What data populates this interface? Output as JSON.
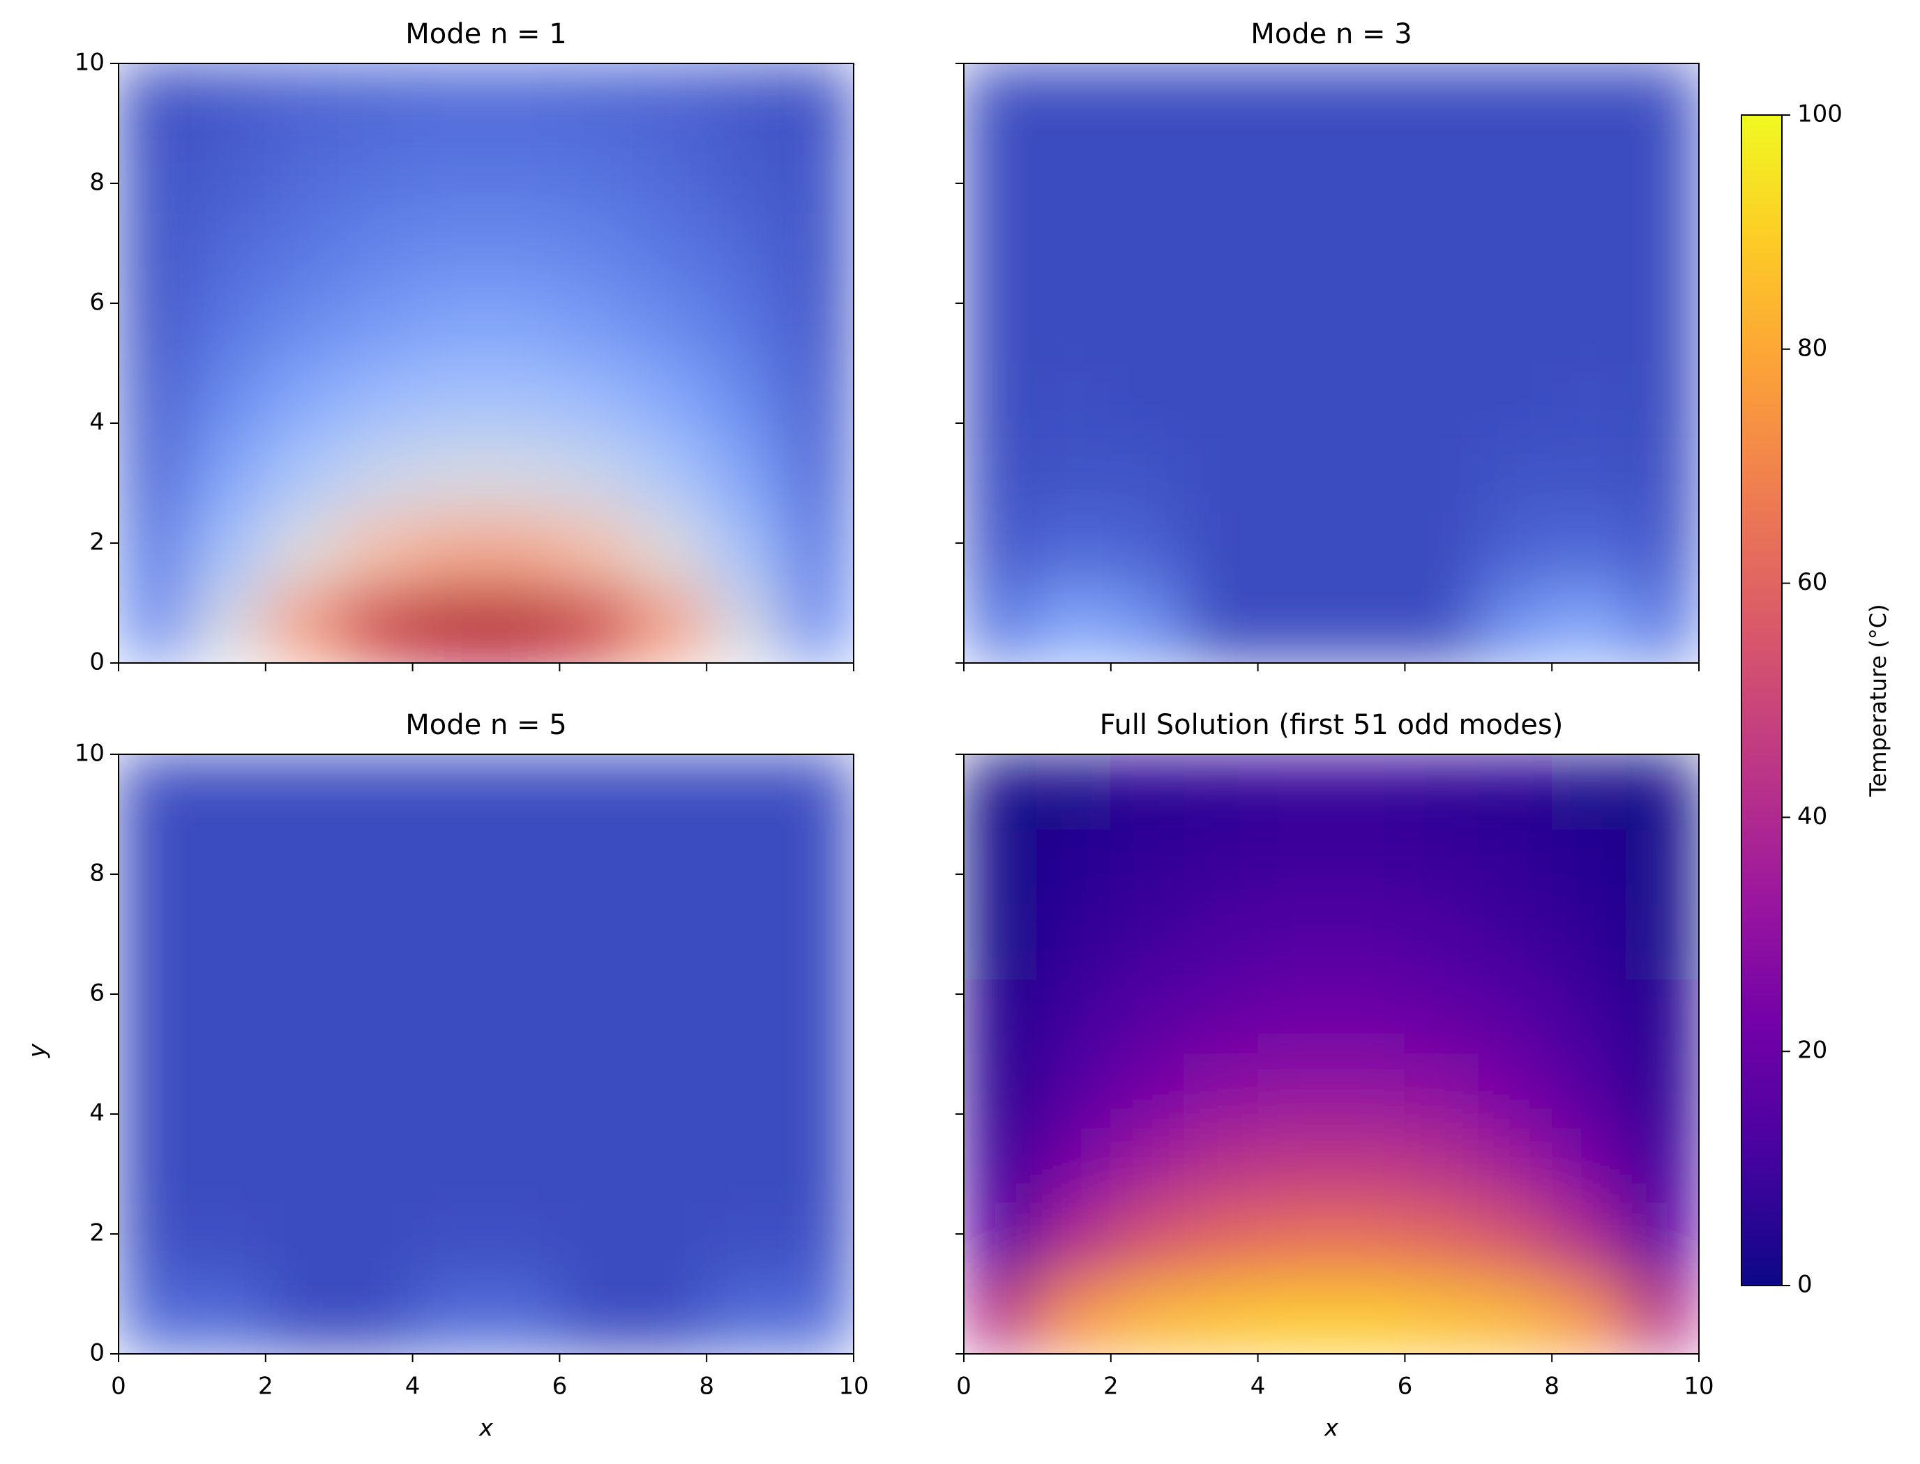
{
  "chart_data": [
    {
      "type": "heatmap",
      "title": "Mode n = 1",
      "xlim": [
        0,
        10
      ],
      "ylim": [
        0,
        10
      ],
      "xticks": [
        0,
        2,
        4,
        6,
        8,
        10
      ],
      "yticks": [
        0,
        2,
        4,
        6,
        8,
        10
      ],
      "x": [
        0.5,
        1.5,
        2.5,
        3.5,
        4.5,
        5.5,
        6.5,
        7.5,
        8.5,
        9.5
      ],
      "y": [
        0.625,
        1.875,
        3.125,
        4.375,
        5.625,
        6.875,
        8.125,
        9.375
      ],
      "z": [
        [
          16,
          47,
          74,
          93,
          103,
          103,
          93,
          74,
          47,
          16
        ],
        [
          11,
          32,
          50,
          63,
          70,
          70,
          63,
          50,
          32,
          11
        ],
        [
          7,
          22,
          34,
          43,
          47,
          47,
          43,
          34,
          22,
          7
        ],
        [
          5,
          15,
          23,
          29,
          32,
          32,
          29,
          23,
          15,
          5
        ],
        [
          3,
          10,
          15,
          19,
          22,
          22,
          19,
          15,
          10,
          3
        ],
        [
          2,
          7,
          10,
          13,
          15,
          15,
          13,
          10,
          7,
          2
        ],
        [
          2,
          4,
          7,
          9,
          10,
          10,
          9,
          7,
          4,
          2
        ],
        [
          1,
          3,
          5,
          6,
          7,
          7,
          6,
          5,
          3,
          1
        ]
      ],
      "clim": [
        0,
        100
      ],
      "colors": [
        "#3b4cc0",
        "#6282ea",
        "#8db0fe",
        "#b8d0f9",
        "#dddcdc",
        "#f5c4ad",
        "#f49a7b",
        "#de604d",
        "#b40426"
      ]
    },
    {
      "type": "heatmap",
      "title": "Mode n = 3",
      "xlim": [
        0,
        10
      ],
      "ylim": [
        0,
        10
      ],
      "xticks": [
        0,
        2,
        4,
        6,
        8,
        10
      ],
      "yticks": [
        0,
        2,
        4,
        6,
        8,
        10
      ],
      "x": [
        0.5,
        1.5,
        2.5,
        3.5,
        4.5,
        5.5,
        6.5,
        7.5,
        8.5,
        9.5
      ],
      "y": [
        0.625,
        1.875,
        3.125,
        4.375,
        5.625,
        6.875,
        8.125,
        9.375
      ],
      "z": [
        [
          11,
          23,
          17,
          -4,
          -21,
          -21,
          -4,
          17,
          23,
          11
        ],
        [
          3,
          7,
          5,
          -1,
          -6,
          -6,
          -1,
          5,
          7,
          3
        ],
        [
          1,
          2,
          2,
          0,
          -2,
          -2,
          0,
          2,
          2,
          1
        ],
        [
          0,
          1,
          0,
          0,
          -1,
          -1,
          0,
          0,
          1,
          0
        ],
        [
          0,
          0,
          0,
          0,
          0,
          0,
          0,
          0,
          0,
          0
        ],
        [
          0,
          0,
          0,
          0,
          0,
          0,
          0,
          0,
          0,
          0
        ],
        [
          0,
          0,
          0,
          0,
          0,
          0,
          0,
          0,
          0,
          0
        ],
        [
          0,
          0,
          0,
          0,
          0,
          0,
          0,
          0,
          0,
          0
        ]
      ],
      "clim": [
        0,
        100
      ],
      "colors": [
        "#3b4cc0",
        "#6282ea",
        "#8db0fe",
        "#b8d0f9",
        "#dddcdc",
        "#f5c4ad",
        "#f49a7b",
        "#de604d",
        "#b40426"
      ]
    },
    {
      "type": "heatmap",
      "title": "Mode n = 5",
      "xlabel": "x",
      "ylabel": "y",
      "xlim": [
        0,
        10
      ],
      "ylim": [
        0,
        10
      ],
      "xticks": [
        0,
        2,
        4,
        6,
        8,
        10
      ],
      "yticks": [
        0,
        2,
        4,
        6,
        8,
        10
      ],
      "x": [
        0.5,
        1.5,
        2.5,
        3.5,
        4.5,
        5.5,
        6.5,
        7.5,
        8.5,
        9.5
      ],
      "y": [
        0.625,
        1.875,
        3.125,
        4.375,
        5.625,
        6.875,
        8.125,
        9.375
      ],
      "z": [
        [
          7,
          7,
          -7,
          -7,
          7,
          7,
          -7,
          -7,
          7,
          7
        ],
        [
          1,
          1,
          -1,
          -1,
          1,
          1,
          -1,
          -1,
          1,
          1
        ],
        [
          0,
          0,
          0,
          0,
          0,
          0,
          0,
          0,
          0,
          0
        ],
        [
          0,
          0,
          0,
          0,
          0,
          0,
          0,
          0,
          0,
          0
        ],
        [
          0,
          0,
          0,
          0,
          0,
          0,
          0,
          0,
          0,
          0
        ],
        [
          0,
          0,
          0,
          0,
          0,
          0,
          0,
          0,
          0,
          0
        ],
        [
          0,
          0,
          0,
          0,
          0,
          0,
          0,
          0,
          0,
          0
        ],
        [
          0,
          0,
          0,
          0,
          0,
          0,
          0,
          0,
          0,
          0
        ]
      ],
      "clim": [
        0,
        100
      ],
      "colors": [
        "#3b4cc0",
        "#6282ea",
        "#8db0fe",
        "#b8d0f9",
        "#dddcdc",
        "#f5c4ad",
        "#f49a7b",
        "#de604d",
        "#b40426"
      ]
    },
    {
      "type": "heatmap",
      "title": "Full Solution (first 51 odd modes)",
      "xlabel": "x",
      "xlim": [
        0,
        10
      ],
      "ylim": [
        0,
        10
      ],
      "xticks": [
        0,
        2,
        4,
        6,
        8,
        10
      ],
      "yticks": [
        0,
        2,
        4,
        6,
        8,
        10
      ],
      "x": [
        0.5,
        1.5,
        2.5,
        3.5,
        4.5,
        5.5,
        6.5,
        7.5,
        8.5,
        9.5
      ],
      "y": [
        0.625,
        1.875,
        3.125,
        4.375,
        5.625,
        6.875,
        8.125,
        9.375
      ],
      "z": [
        [
          43,
          74,
          83,
          86,
          88,
          88,
          86,
          83,
          74,
          43
        ],
        [
          16,
          40,
          54,
          61,
          64,
          64,
          61,
          54,
          40,
          16
        ],
        [
          9,
          24,
          35,
          42,
          45,
          45,
          42,
          35,
          24,
          9
        ],
        [
          5,
          15,
          23,
          29,
          31,
          31,
          29,
          23,
          15,
          5
        ],
        [
          4,
          10,
          16,
          19,
          21,
          21,
          19,
          16,
          10,
          4
        ],
        [
          2,
          7,
          10,
          13,
          15,
          15,
          13,
          10,
          7,
          2
        ],
        [
          2,
          5,
          7,
          9,
          10,
          10,
          9,
          7,
          5,
          2
        ],
        [
          1,
          3,
          5,
          6,
          7,
          7,
          6,
          5,
          3,
          1
        ]
      ],
      "clim": [
        0,
        100
      ],
      "colors": [
        "#0d0887",
        "#46039f",
        "#7201a8",
        "#9c179e",
        "#bd3786",
        "#d8576b",
        "#ed7953",
        "#fb9f3a",
        "#fdca26",
        "#f0f921"
      ],
      "colorbar": {
        "label": "Temperature (°C)",
        "ticks": [
          0,
          20,
          40,
          60,
          80,
          100
        ]
      }
    }
  ]
}
